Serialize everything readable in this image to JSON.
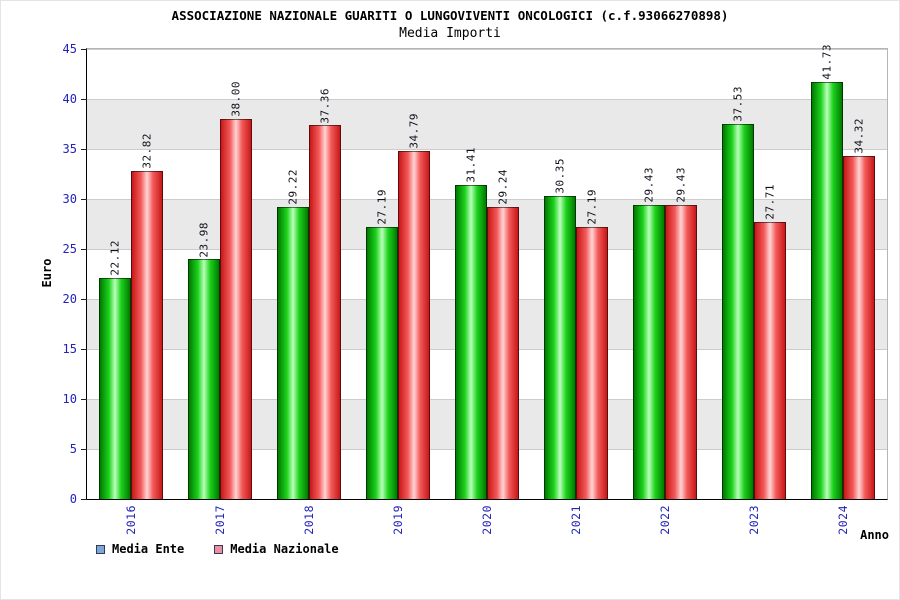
{
  "colors": {
    "axis_tick_labels": "#2323bb",
    "value_labels": "#10101c",
    "title": "#000000",
    "band_gray": "#e9e9e9",
    "grid_line": "#cccccc"
  },
  "chart_data": {
    "type": "bar",
    "title": "ASSOCIAZIONE NAZIONALE GUARITI O LUNGOVIVENTI ONCOLOGICI (c.f.93066270898)",
    "subtitle": "Media Importi",
    "xlabel": "Anno",
    "ylabel": "Euro",
    "ylim": [
      0,
      45
    ],
    "y_ticks": [
      0,
      5,
      10,
      15,
      20,
      25,
      30,
      35,
      40,
      45
    ],
    "grid": true,
    "legend_position": "bottom-left",
    "categories": [
      "2016",
      "2017",
      "2018",
      "2019",
      "2020",
      "2021",
      "2022",
      "2023",
      "2024"
    ],
    "series": [
      {
        "name": "Media Ente",
        "values": [
          22.12,
          23.98,
          29.22,
          27.19,
          31.41,
          30.35,
          29.43,
          37.53,
          41.73
        ],
        "color_dark": "#007a00",
        "color_mid": "#1ed31e",
        "color_light": "#baffba",
        "legend_swatch": "#7da7d9"
      },
      {
        "name": "Media Nazionale",
        "values": [
          32.82,
          38.0,
          37.36,
          34.79,
          29.24,
          27.19,
          29.43,
          27.71,
          34.32
        ],
        "color_dark": "#c81818",
        "color_mid": "#f35a5a",
        "color_light": "#ffd4d4",
        "legend_swatch": "#ef8e9e"
      }
    ]
  }
}
